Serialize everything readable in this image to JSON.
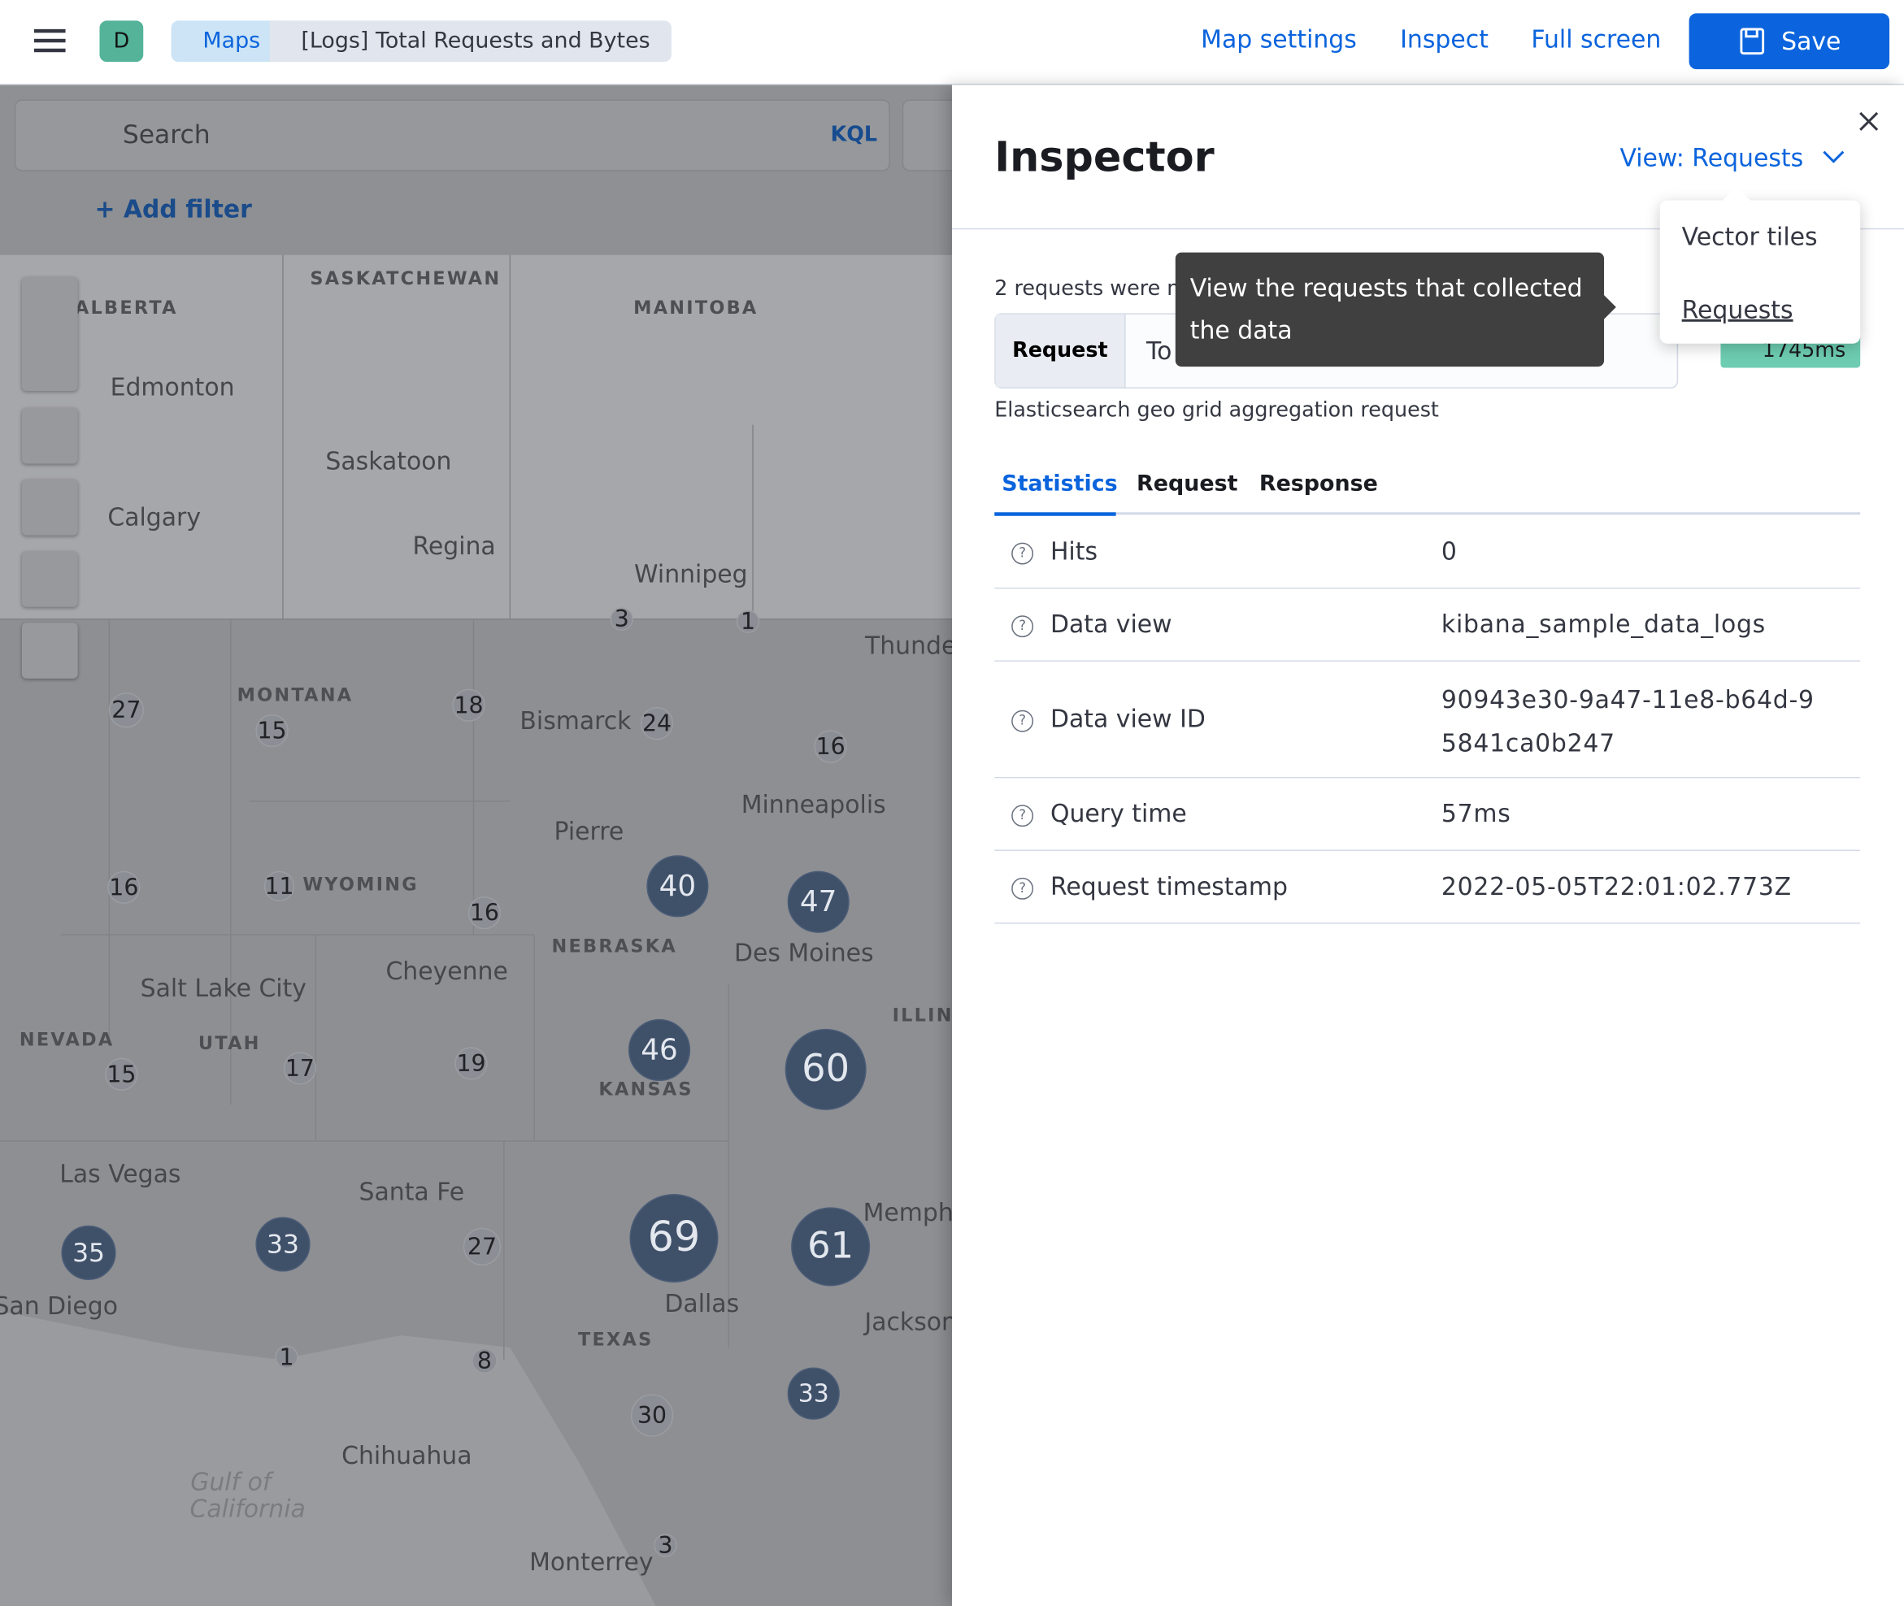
{
  "header": {
    "avatar": "D",
    "breadcrumbs": [
      "Maps",
      "[Logs] Total Requests and Bytes"
    ],
    "actions": [
      "Map settings",
      "Inspect",
      "Full screen"
    ],
    "save": "Save"
  },
  "query": {
    "placeholder": "Search",
    "language": "KQL",
    "add_filter": "+ Add filter"
  },
  "map": {
    "labels": [
      "SASKATCHEWAN",
      "ALBERTA",
      "MANITOBA",
      "Edmonton",
      "Saskatoon",
      "Calgary",
      "Regina",
      "Winnipeg",
      "Thunde",
      "MONTANA",
      "Bismarck",
      "Minneapolis",
      "Pierre",
      "WYOMING",
      "NEBRASKA",
      "Des Moines",
      "Cheyenne",
      "Salt Lake City",
      "ILLIN",
      "NEVADA",
      "UTAH",
      "KANSAS",
      "Las Vegas",
      "Santa Fe",
      "Memph",
      "San Diego",
      "Dallas",
      "Jackson",
      "TEXAS",
      "Chihuahua",
      "Gulf of",
      "California",
      "Monterrey"
    ],
    "clusters": [
      3,
      1,
      27,
      15,
      18,
      24,
      16,
      16,
      11,
      16,
      40,
      47,
      15,
      17,
      19,
      46,
      60,
      35,
      33,
      27,
      69,
      61,
      1,
      8,
      30,
      33,
      3
    ]
  },
  "inspector": {
    "title": "Inspector",
    "view": "View: Requests",
    "menu_items": [
      "Vector tiles",
      "Requests"
    ],
    "tooltip": "View the requests that collected the data",
    "requests_note": "2 requests were m",
    "request_label": "Request",
    "request_select": "To",
    "badge": "1745ms",
    "description": "Elasticsearch geo grid aggregation request",
    "tabs": [
      "Statistics",
      "Request",
      "Response"
    ],
    "stats": [
      [
        "Hits",
        "0"
      ],
      [
        "Data view",
        "kibana_sample_data_logs"
      ],
      [
        "Data view ID",
        "90943e30-9a47-11e8-b64d-95841ca0b247"
      ],
      [
        "Query time",
        "57ms"
      ],
      [
        "Request timestamp",
        "2022-05-05T22:01:02.773Z"
      ]
    ]
  }
}
